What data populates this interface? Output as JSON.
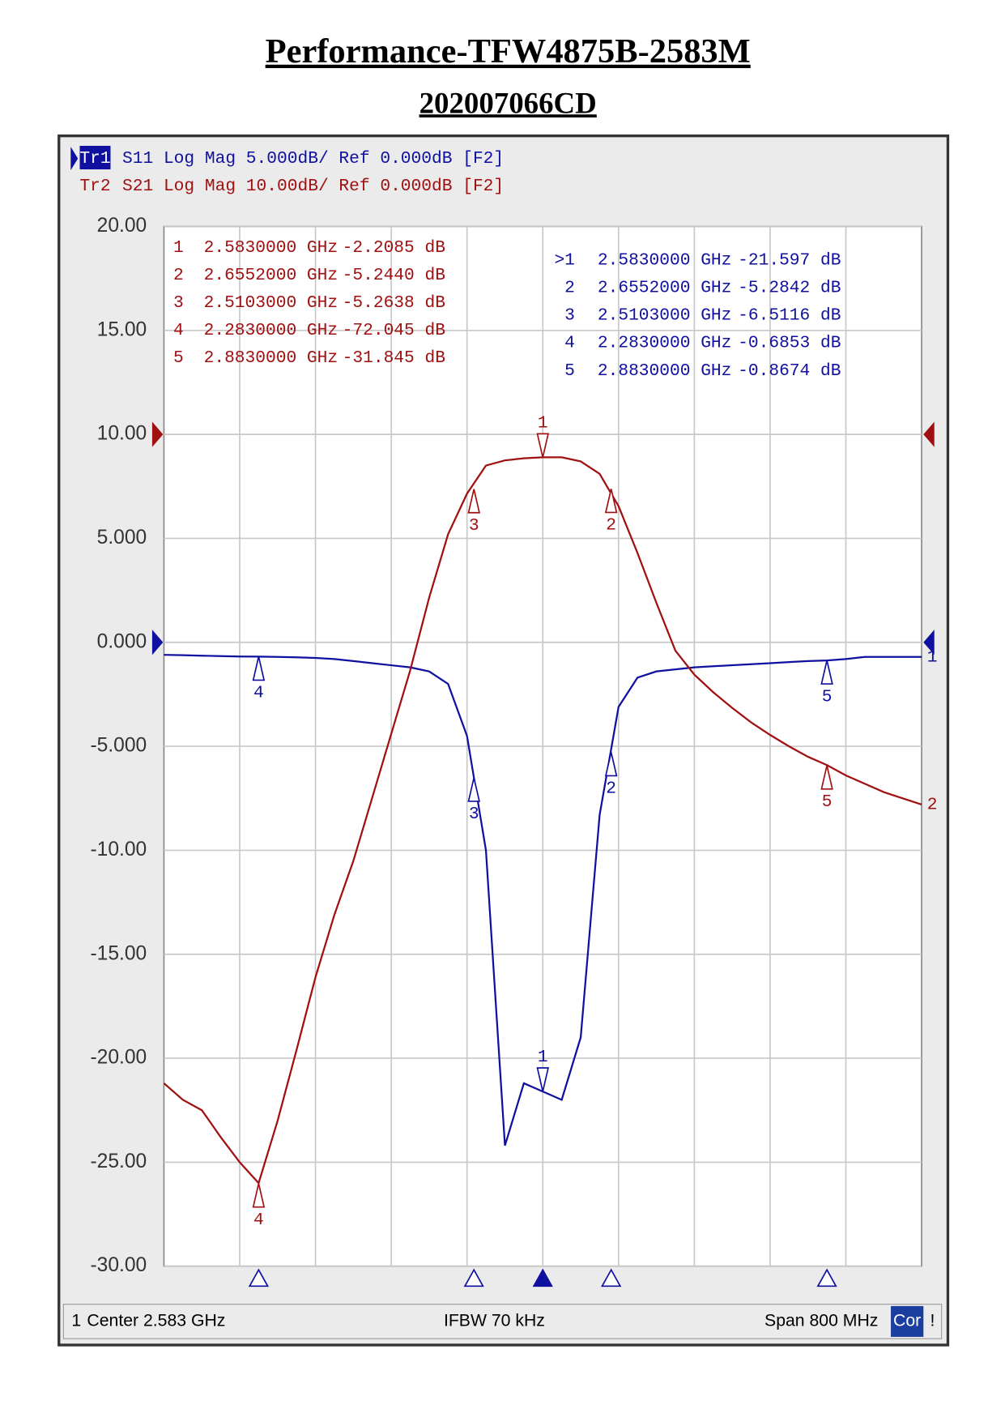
{
  "title": "Performance-TFW4875B-2583M",
  "subtitle": "202007066CD",
  "chart_data": {
    "type": "line",
    "header": [
      "S11 Log Mag 5.000dB/ Ref 0.000dB [F2]",
      "S21 Log Mag 10.00dB/ Ref 0.000dB [F2]"
    ],
    "xlim": [
      2.183,
      2.983
    ],
    "ylim": [
      -30,
      20
    ],
    "yticks": [
      {
        "value": 20,
        "label": "20.00"
      },
      {
        "value": 15,
        "label": "15.00"
      },
      {
        "value": 10,
        "label": "10.00"
      },
      {
        "value": 5,
        "label": "5.000"
      },
      {
        "value": 0,
        "label": "0.000"
      },
      {
        "value": -5,
        "label": "-5.000"
      },
      {
        "value": -10,
        "label": "-10.00"
      },
      {
        "value": -15,
        "label": "-15.00"
      },
      {
        "value": -20,
        "label": "-20.00"
      },
      {
        "value": -25,
        "label": "-25.00"
      },
      {
        "value": -30,
        "label": "-30.00"
      }
    ],
    "y2lim": [
      -80,
      20
    ],
    "grid": true,
    "x": [
      2.183,
      2.203,
      2.223,
      2.243,
      2.263,
      2.283,
      2.303,
      2.323,
      2.343,
      2.363,
      2.383,
      2.403,
      2.423,
      2.443,
      2.463,
      2.483,
      2.503,
      2.523,
      2.543,
      2.563,
      2.583,
      2.603,
      2.623,
      2.643,
      2.663,
      2.683,
      2.703,
      2.723,
      2.743,
      2.763,
      2.783,
      2.803,
      2.823,
      2.843,
      2.863,
      2.883,
      2.903,
      2.923,
      2.943,
      2.963,
      2.983
    ],
    "series": [
      {
        "name": "Tr1",
        "end_label": "1",
        "color": "#1010a0",
        "values": [
          -0.6,
          -0.62,
          -0.64,
          -0.66,
          -0.68,
          -0.69,
          -0.7,
          -0.72,
          -0.75,
          -0.8,
          -0.9,
          -1.0,
          -1.1,
          -1.2,
          -1.4,
          -2.0,
          -4.5,
          -10,
          -24.2,
          -21.2,
          -21.6,
          -22,
          -19,
          -8.3,
          -3.1,
          -1.7,
          -1.4,
          -1.3,
          -1.2,
          -1.15,
          -1.1,
          -1.05,
          -1.0,
          -0.95,
          -0.9,
          -0.87,
          -0.8,
          -0.7,
          -0.7,
          -0.7,
          -0.7
        ],
        "markers": [
          {
            "id": "1",
            "table_id": ">1",
            "x": 2.583,
            "x_label": "2.5830000 GHz",
            "value": -21.597,
            "value_label": "-21.597 dB"
          },
          {
            "id": "2",
            "table_id": "2",
            "x": 2.6552,
            "x_label": "2.6552000 GHz",
            "value": -5.2842,
            "value_label": "-5.2842 dB"
          },
          {
            "id": "3",
            "table_id": "3",
            "x": 2.5103,
            "x_label": "2.5103000 GHz",
            "value": -6.5116,
            "value_label": "-6.5116 dB"
          },
          {
            "id": "4",
            "table_id": "4",
            "x": 2.283,
            "x_label": "2.2830000 GHz",
            "value": -0.6853,
            "value_label": "-0.6853 dB"
          },
          {
            "id": "5",
            "table_id": "5",
            "x": 2.883,
            "x_label": "2.8830000 GHz",
            "value": -0.8674,
            "value_label": "-0.8674 dB"
          }
        ]
      },
      {
        "name": "Tr2",
        "end_label": "2",
        "color": "#a01010",
        "axis": "y2",
        "values": [
          -62.4,
          -64,
          -65,
          -67.6,
          -70,
          -72.0,
          -66,
          -59.2,
          -52.2,
          -46.2,
          -41,
          -34.9,
          -28.8,
          -22.7,
          -15.7,
          -9.6,
          -5.7,
          -3,
          -2.5,
          -2.3,
          -2.2,
          -2.2,
          -2.6,
          -3.8,
          -6.9,
          -11.4,
          -16.2,
          -20.8,
          -23.1,
          -24.8,
          -26.3,
          -27.7,
          -28.9,
          -30,
          -31,
          -31.8,
          -32.8,
          -33.6,
          -34.4,
          -35,
          -35.6
        ],
        "markers": [
          {
            "id": "1",
            "table_id": "1",
            "x": 2.583,
            "x_label": "2.5830000 GHz",
            "value": -2.2085,
            "value_label": "-2.2085 dB"
          },
          {
            "id": "2",
            "table_id": "2",
            "x": 2.6552,
            "x_label": "2.6552000 GHz",
            "value": -5.244,
            "value_label": "-5.2440 dB"
          },
          {
            "id": "3",
            "table_id": "3",
            "x": 2.5103,
            "x_label": "2.5103000 GHz",
            "value": -5.2638,
            "value_label": "-5.2638 dB"
          },
          {
            "id": "4",
            "table_id": "4",
            "x": 2.283,
            "x_label": "2.2830000 GHz",
            "value": -72.045,
            "value_label": "-72.045 dB"
          },
          {
            "id": "5",
            "table_id": "5",
            "x": 2.883,
            "x_label": "2.8830000 GHz",
            "value": -31.845,
            "value_label": "-31.845 dB"
          }
        ]
      }
    ],
    "status": {
      "channel": "1",
      "center": "Center 2.583 GHz",
      "ifbw": "IFBW 70 kHz",
      "span": "Span 800 MHz",
      "cor": "Cor",
      "flag": "!"
    }
  }
}
